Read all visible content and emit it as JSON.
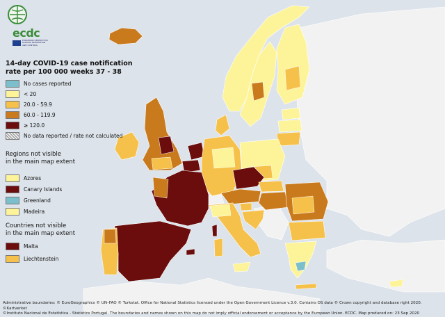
{
  "header": {
    "logo_text": "ecdc",
    "agency_lines": [
      "EUROPEAN CENTRE FOR",
      "DISEASE PREVENTION",
      "AND CONTROL"
    ]
  },
  "title": "14-day COVID-19 case notification rate per 100 000 weeks 37 - 38",
  "legend": {
    "items": [
      {
        "label": "No cases reported",
        "color": "#7bbfcc"
      },
      {
        "label": "< 20",
        "color": "#fdf49a"
      },
      {
        "label": "20.0 - 59.9",
        "color": "#f5c14a"
      },
      {
        "label": "60.0 - 119.9",
        "color": "#c97a1c"
      },
      {
        "label": "≥ 120.0",
        "color": "#6b0d0d"
      },
      {
        "label": "No data reported / rate not calculated",
        "color": "hatch"
      }
    ]
  },
  "regions_section": {
    "heading_line1": "Regions not visible",
    "heading_line2": "in the main map extent",
    "items": [
      {
        "label": "Azores",
        "color": "#fdf49a"
      },
      {
        "label": "Canary Islands",
        "color": "#6b0d0d"
      },
      {
        "label": "Greenland",
        "color": "#7bbfcc"
      },
      {
        "label": "Madeira",
        "color": "#fdf49a"
      }
    ]
  },
  "countries_section": {
    "heading_line1": "Countries not visible",
    "heading_line2": "in the main map extent",
    "items": [
      {
        "label": "Malta",
        "color": "#6b0d0d"
      },
      {
        "label": "Liechtenstein",
        "color": "#f5c14a"
      }
    ]
  },
  "footer": {
    "line1": "Administrative boundaries: © EuroGeographics © UN–FAO © Turkstat. Office for National Statistics licensed under the Open Government Licence v.3.0. Contains OS data © Crown copyright and database right 2020. ©Kartverket",
    "line2": "©Instituto Nacional de Estatística - Statistics Portugal. The boundaries and names shown on this map do not imply official endorsement or acceptance by the European Union. ECDC. Map produced on: 23 Sep 2020"
  },
  "colors": {
    "sea": "#dce3ea",
    "non_eu_land": "#f2f2f2",
    "border": "#ffffff"
  }
}
